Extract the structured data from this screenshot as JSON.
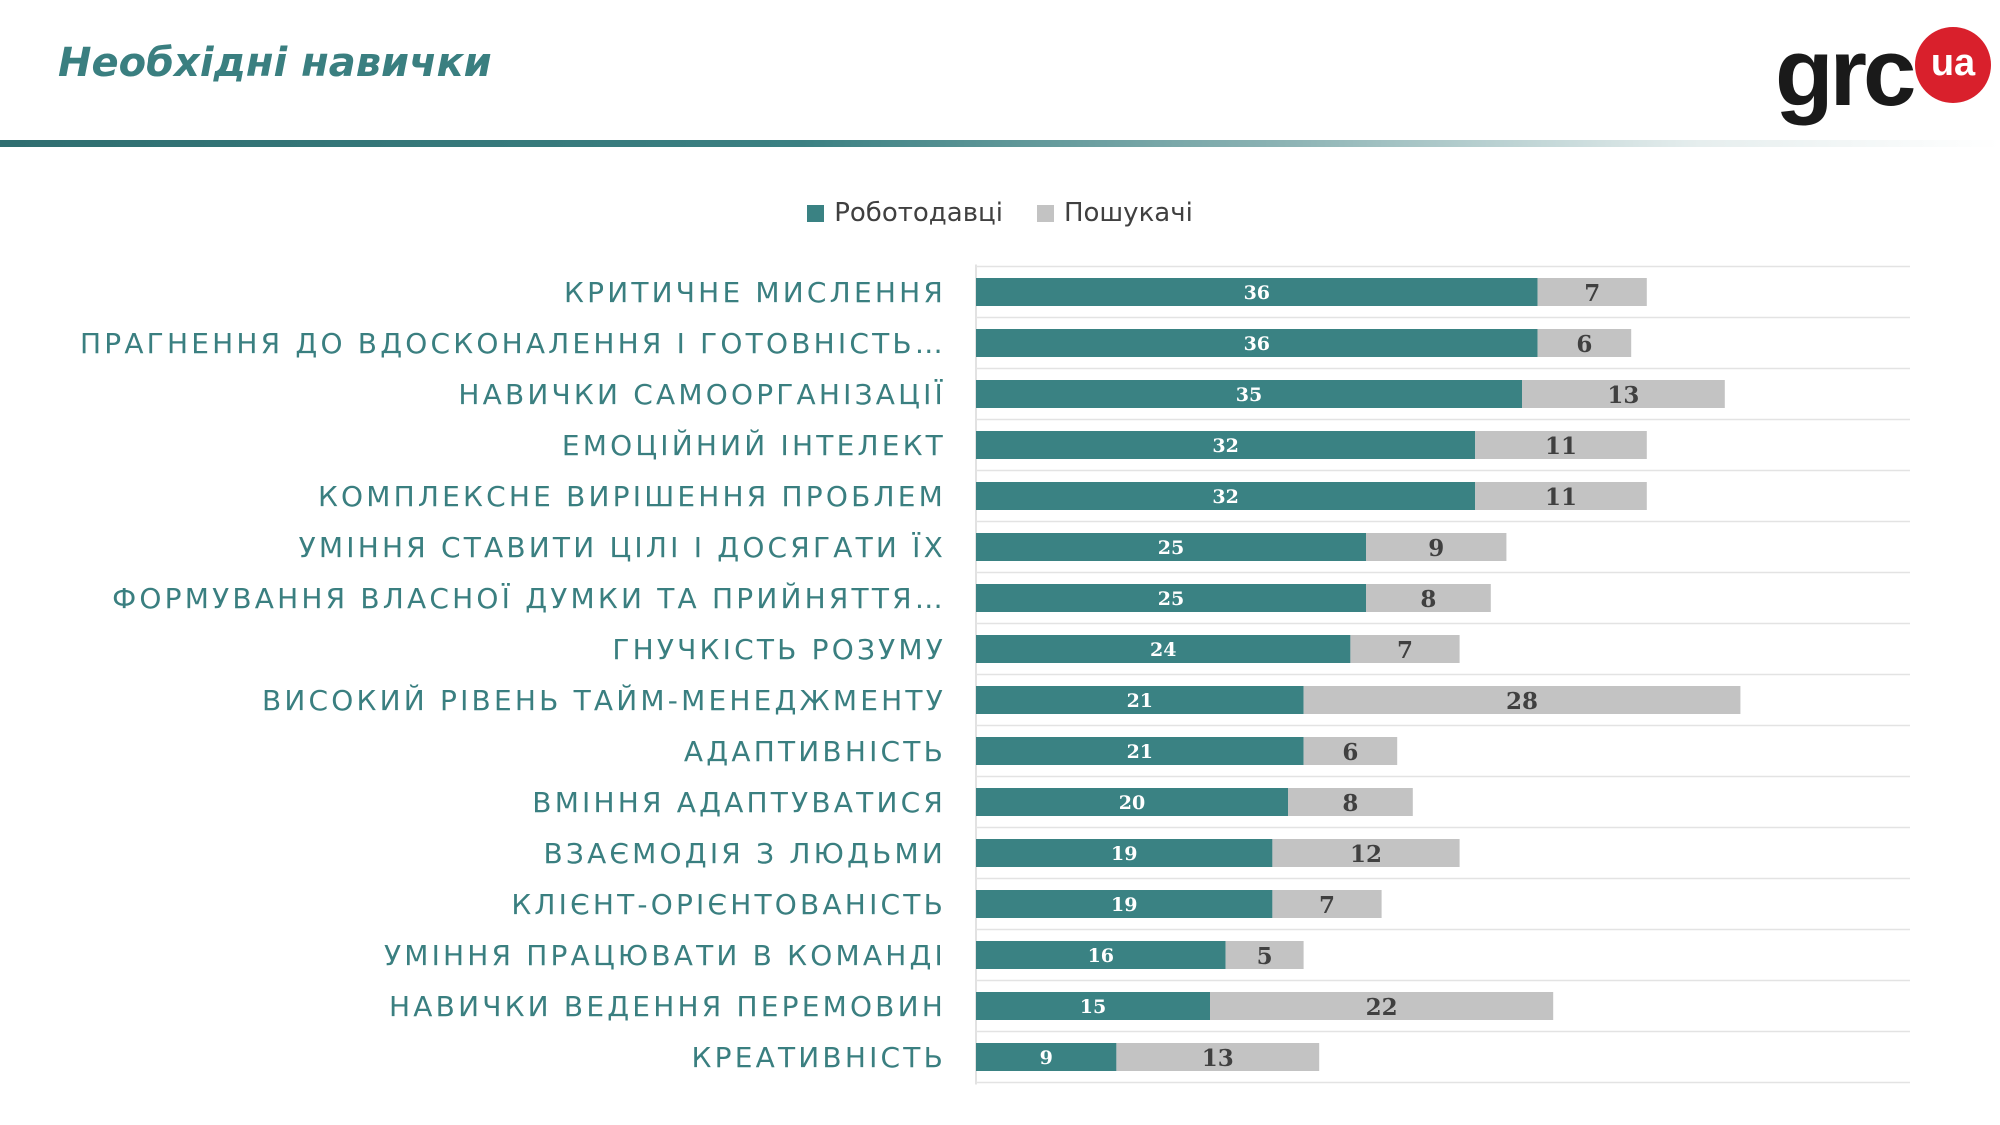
{
  "header": {
    "title": "Необхідні навички",
    "logo_text": "grc",
    "logo_badge": "ua"
  },
  "colors": {
    "title": "#3a7f80",
    "employers": "#3a8283",
    "seekers": "#c3c3c3",
    "category_label": "#3a7f80",
    "logo_red": "#d9202c"
  },
  "chart_data": {
    "type": "bar",
    "orientation": "horizontal",
    "stacked": true,
    "legend_position": "top",
    "grid": "horizontal-row-lines",
    "xlim": [
      0,
      60
    ],
    "categories": [
      "КРИТИЧНЕ МИСЛЕННЯ",
      "ПРАГНЕННЯ ДО ВДОСКОНАЛЕННЯ І ГОТОВНІСТЬ…",
      "НАВИЧКИ САМООРГАНІЗАЦІЇ",
      "ЕМОЦІЙНИЙ ІНТЕЛЕКТ",
      "КОМПЛЕКСНЕ ВИРІШЕННЯ ПРОБЛЕМ",
      "УМІННЯ СТАВИТИ ЦІЛІ І ДОСЯГАТИ ЇХ",
      "ФОРМУВАННЯ ВЛАСНОЇ ДУМКИ ТА ПРИЙНЯТТЯ…",
      "ГНУЧКІСТЬ РОЗУМУ",
      "ВИСОКИЙ РІВЕНЬ ТАЙМ-МЕНЕДЖМЕНТУ",
      "АДАПТИВНІСТЬ",
      "ВМІННЯ АДАПТУВАТИСЯ",
      "ВЗАЄМОДІЯ З ЛЮДЬМИ",
      "КЛІЄНТ-ОРІЄНТОВАНІСТЬ",
      "УМІННЯ ПРАЦЮВАТИ В КОМАНДІ",
      "НАВИЧКИ ВЕДЕННЯ ПЕРЕМОВИН",
      "КРЕАТИВНІСТЬ"
    ],
    "series": [
      {
        "name": "Роботодавці",
        "values": [
          36,
          36,
          35,
          32,
          32,
          25,
          25,
          24,
          21,
          21,
          20,
          19,
          19,
          16,
          15,
          9
        ]
      },
      {
        "name": "Пошукачі",
        "values": [
          7,
          6,
          13,
          11,
          11,
          9,
          8,
          7,
          28,
          6,
          8,
          12,
          7,
          5,
          22,
          13
        ]
      }
    ]
  }
}
